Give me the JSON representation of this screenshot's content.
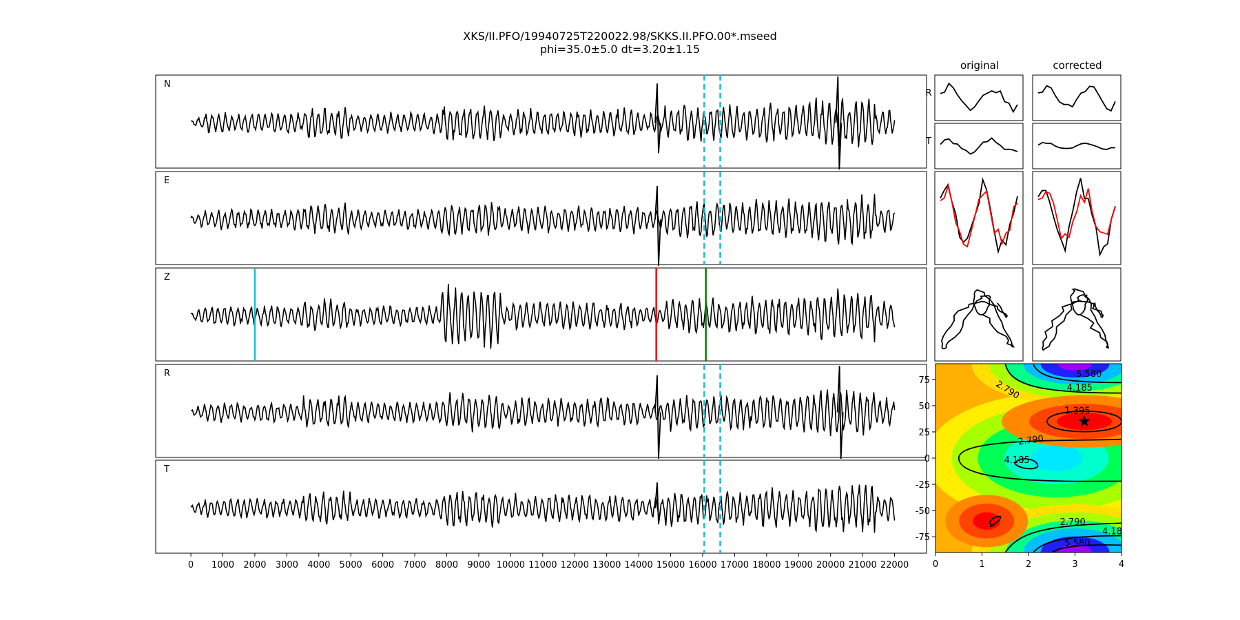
{
  "figure": {
    "title_line1": "XKS/II.PFO/19940725T220022.98/SKKS.II.PFO.00*.mseed",
    "title_line2": "phi=35.0±5.0 dt=3.20±1.15"
  },
  "chart_data": [
    {
      "type": "line",
      "name": "waveforms",
      "panels": [
        "N",
        "E",
        "Z",
        "R",
        "T"
      ],
      "x_ticks": [
        0,
        1000,
        2000,
        3000,
        4000,
        5000,
        6000,
        7000,
        8000,
        9000,
        10000,
        11000,
        12000,
        13000,
        14000,
        15000,
        16000,
        17000,
        18000,
        19000,
        20000,
        21000,
        22000
      ],
      "xlim": [
        -1100,
        23000
      ],
      "trace_start": 0,
      "trace_end": 22000,
      "window_lines": [
        16050,
        16550
      ],
      "z_markers": [
        {
          "x": 2000,
          "color": "#17becf"
        },
        {
          "x": 14550,
          "color": "#ff0000"
        },
        {
          "x": 16100,
          "color": "#008000"
        }
      ],
      "spikes": [
        {
          "panel": "N",
          "x": 14600,
          "up": 0.85,
          "down": 0.65
        },
        {
          "panel": "N",
          "x": 20250,
          "up": 1.0,
          "down": 1.0
        },
        {
          "panel": "E",
          "x": 14600,
          "up": 0.72,
          "down": 1.0
        },
        {
          "panel": "R",
          "x": 14600,
          "up": 0.8,
          "down": 1.0
        },
        {
          "panel": "R",
          "x": 20300,
          "up": 1.0,
          "down": 1.0
        },
        {
          "panel": "T",
          "x": 14600,
          "up": 0.55,
          "down": 0.35
        }
      ]
    },
    {
      "type": "line",
      "name": "particle-motion",
      "column_titles": [
        "original",
        "corrected"
      ],
      "row_labels": [
        "R",
        "T"
      ],
      "series_colors": [
        "#000000",
        "#ff0000"
      ]
    },
    {
      "type": "heatmap",
      "name": "error-surface",
      "xlim": [
        0,
        4
      ],
      "ylim": [
        -90,
        90
      ],
      "x_ticks": [
        0,
        1,
        2,
        3,
        4
      ],
      "y_ticks": [
        75,
        50,
        25,
        0,
        -25,
        -50,
        -75
      ],
      "contour_labels": [
        "5.580",
        "4.185",
        "2.790",
        "1.395",
        "2.790",
        "4.185",
        "2.790",
        "4.18",
        "5.580"
      ],
      "best": {
        "dt": 3.2,
        "phi": 35.0
      }
    }
  ]
}
